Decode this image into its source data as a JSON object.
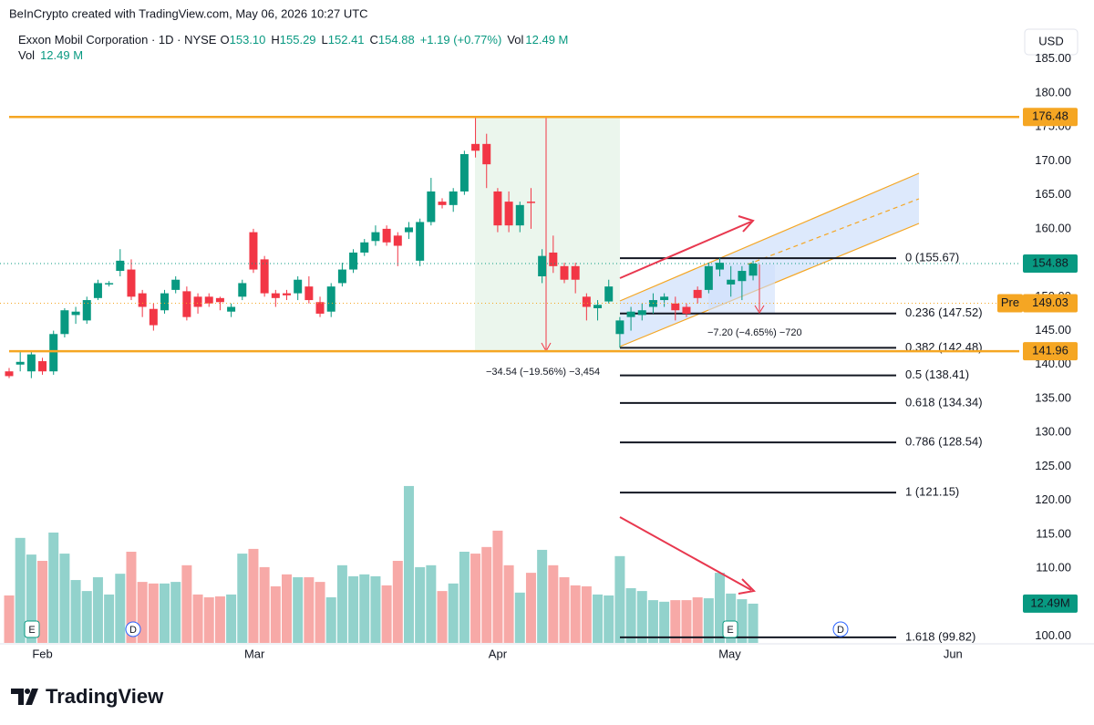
{
  "header": {
    "attribution": "BeInCrypto created with TradingView.com, May 06, 2026 10:27 UTC",
    "symbol": "Exxon Mobil Corporation · 1D · NYSE",
    "fields": [
      {
        "key": "O",
        "value": "153.10"
      },
      {
        "key": "H",
        "value": "155.29"
      },
      {
        "key": "L",
        "value": "152.41"
      },
      {
        "key": "C",
        "value": "154.88"
      }
    ],
    "change": "+1.19 (+0.77%)",
    "vol_key": "Vol",
    "vol_value": "12.49 M",
    "currency": "USD"
  },
  "footer": {
    "logo": "TradingView"
  },
  "chart_data": {
    "type": "candlestick",
    "categories": [
      null,
      null,
      null,
      null,
      null,
      null,
      null,
      null,
      null,
      null,
      null,
      null,
      null,
      null,
      null,
      null,
      null,
      null,
      null,
      null,
      null,
      null,
      null,
      null,
      null,
      null,
      null,
      null,
      null,
      null,
      null,
      null,
      null,
      null,
      null,
      null,
      null,
      null,
      null,
      null,
      null,
      null,
      null,
      null,
      null,
      null,
      null,
      null,
      null,
      null,
      null,
      null,
      null,
      null,
      null,
      null,
      null,
      null,
      null,
      null,
      null,
      null,
      null,
      null,
      null,
      null,
      null,
      null
    ],
    "open": [
      139,
      140,
      139,
      140.5,
      139,
      144.5,
      147.3,
      146.5,
      149.8,
      151.8,
      153.8,
      154,
      150.5,
      148.2,
      148,
      151,
      150.8,
      150,
      150,
      149.8,
      147.8,
      150,
      159.5,
      155.5,
      150.5,
      150.5,
      150.5,
      151.5,
      149.2,
      147.8,
      152,
      154,
      156.5,
      158.2,
      160,
      159,
      159.5,
      155.3,
      161,
      164,
      163.5,
      165.5,
      172.5,
      172.5,
      165.5,
      164,
      160.5,
      164,
      153,
      156.5,
      154.5,
      154.5,
      150,
      148.3,
      149.3,
      144.5,
      147,
      147.3,
      148.5,
      149.5,
      149,
      148.5,
      151,
      151,
      154,
      151.8,
      152.3,
      153.1
    ],
    "high": [
      139.5,
      142,
      142,
      141,
      145,
      148.3,
      148.5,
      150,
      152.5,
      152.3,
      157,
      155.5,
      151,
      149,
      151,
      153,
      151.5,
      150.5,
      150.5,
      150,
      149,
      152.5,
      160,
      156,
      151,
      151,
      153,
      153,
      150,
      152,
      155,
      157,
      158.5,
      160.5,
      160.5,
      159.5,
      161,
      161.5,
      167.5,
      164.5,
      166,
      171.5,
      176.5,
      174,
      166,
      165.5,
      164,
      166,
      157,
      159,
      155,
      155,
      150.5,
      149.5,
      152.5,
      147,
      148.5,
      149,
      150.5,
      150.5,
      150,
      149,
      151.5,
      155,
      155.7,
      154.5,
      154.5,
      155.29
    ],
    "low": [
      138,
      139,
      138,
      138.5,
      138.5,
      144,
      146,
      146,
      149.5,
      151.5,
      153,
      149.5,
      147,
      145,
      147.5,
      150.5,
      146.5,
      147.5,
      148.5,
      148,
      147,
      149.5,
      153.5,
      150,
      148.5,
      149.5,
      149.5,
      149,
      147,
      147,
      151.5,
      153.5,
      156,
      157.5,
      157.5,
      154.5,
      158.5,
      154.5,
      160.5,
      163,
      162.5,
      165,
      170.5,
      166,
      159.5,
      159.5,
      159.5,
      160,
      152,
      153.5,
      152,
      150.5,
      146.5,
      146.5,
      149,
      142.5,
      145,
      146.5,
      147.5,
      148.5,
      146.5,
      147,
      149,
      150.5,
      153,
      150,
      149.5,
      152.41
    ],
    "close": [
      138.3,
      140.4,
      141.5,
      139,
      144.5,
      148,
      147.8,
      149.5,
      152,
      152,
      155.3,
      150,
      148.5,
      145.8,
      150.5,
      152.5,
      147,
      148.5,
      149,
      149.2,
      148.5,
      152,
      154,
      150.5,
      149.8,
      150.2,
      152.5,
      149.5,
      147.5,
      151.5,
      154,
      156.5,
      158,
      159.5,
      158,
      157.5,
      160.2,
      161,
      165.5,
      163.5,
      165.5,
      171,
      171.5,
      169.5,
      160.5,
      160.5,
      163.5,
      163.8,
      156,
      154.5,
      152.5,
      152.5,
      148.5,
      148.8,
      151.5,
      146.5,
      147.8,
      148,
      149.5,
      150,
      148,
      147.5,
      149.8,
      154.5,
      155,
      152.5,
      153.8,
      154.88
    ],
    "up_color": "#089981",
    "down_color": "#f23645",
    "ylim": [
      99,
      189
    ],
    "yticks": [
      {
        "value": 100,
        "label": "100.00"
      },
      {
        "value": 105,
        "label": "105.00"
      },
      {
        "value": 110,
        "label": "110.00"
      },
      {
        "value": 115,
        "label": "115.00"
      },
      {
        "value": 120,
        "label": "120.00"
      },
      {
        "value": 125,
        "label": "125.00"
      },
      {
        "value": 130,
        "label": "130.00"
      },
      {
        "value": 135,
        "label": "135.00"
      },
      {
        "value": 140,
        "label": "140.00"
      },
      {
        "value": 145,
        "label": "145.00"
      },
      {
        "value": 150,
        "label": "150.00"
      },
      {
        "value": 155,
        "label": "155.00"
      },
      {
        "value": 160,
        "label": "160.00"
      },
      {
        "value": 165,
        "label": "165.00"
      },
      {
        "value": 170,
        "label": "170.00"
      },
      {
        "value": 175,
        "label": "175.00"
      },
      {
        "value": 180,
        "label": "180.00"
      },
      {
        "value": 185,
        "label": "185.00"
      }
    ],
    "xticks": [
      {
        "value": 3,
        "label": "Feb"
      },
      {
        "value": 22.1,
        "label": "Mar"
      },
      {
        "value": 44,
        "label": "Apr"
      },
      {
        "value": 64.9,
        "label": "May"
      },
      {
        "value": 85,
        "label": "Jun"
      }
    ],
    "grid": false,
    "volume": {
      "values": [
        15.1,
        33.4,
        28.1,
        26.1,
        35.1,
        28.4,
        20.0,
        16.5,
        20.9,
        15.4,
        22.0,
        29.0,
        19.4,
        18.9,
        18.9,
        19.4,
        24.7,
        15.4,
        14.5,
        14.8,
        15.4,
        28.4,
        29.9,
        24.1,
        18.0,
        21.8,
        20.9,
        20.9,
        19.4,
        14.5,
        24.7,
        21.2,
        21.8,
        21.2,
        18.3,
        26.1,
        49.9,
        24.1,
        24.7,
        16.5,
        18.9,
        29.0,
        28.4,
        30.5,
        35.7,
        24.7,
        16.0,
        22.3,
        29.6,
        24.7,
        20.9,
        18.3,
        18.0,
        15.4,
        15.1,
        27.6,
        17.4,
        16.5,
        13.6,
        13.1,
        13.6,
        13.6,
        14.5,
        14.2,
        22.3,
        15.7,
        13.9,
        12.49
      ],
      "last_label": "12.49M",
      "ylim": [
        0,
        58
      ],
      "up_color": "#92d2cc",
      "down_color": "#f7a9a7"
    },
    "levels": [
      176.48,
      141.96
    ],
    "level_color": "#f5a623",
    "last_price": 154.88,
    "pre_market": {
      "label": "Pre",
      "value": 149.03
    },
    "fib_levels": [
      {
        "label": "0 (155.67)",
        "value": 155.67
      },
      {
        "label": "0.236 (147.52)",
        "value": 147.52
      },
      {
        "label": "0.382 (142.48)",
        "value": 142.48
      },
      {
        "label": "0.5 (138.41)",
        "value": 138.41
      },
      {
        "label": "0.618 (134.34)",
        "value": 134.34
      },
      {
        "label": "0.786 (128.54)",
        "value": 128.54
      },
      {
        "label": "1 (121.15)",
        "value": 121.15
      },
      {
        "label": "1.618 (99.82)",
        "value": 99.82
      }
    ],
    "measure_1": "−34.54 (−19.56%) −3,454",
    "measure_2": "−7.20 (−4.65%) −720",
    "events": [
      "E",
      "D",
      "E",
      "D"
    ]
  }
}
